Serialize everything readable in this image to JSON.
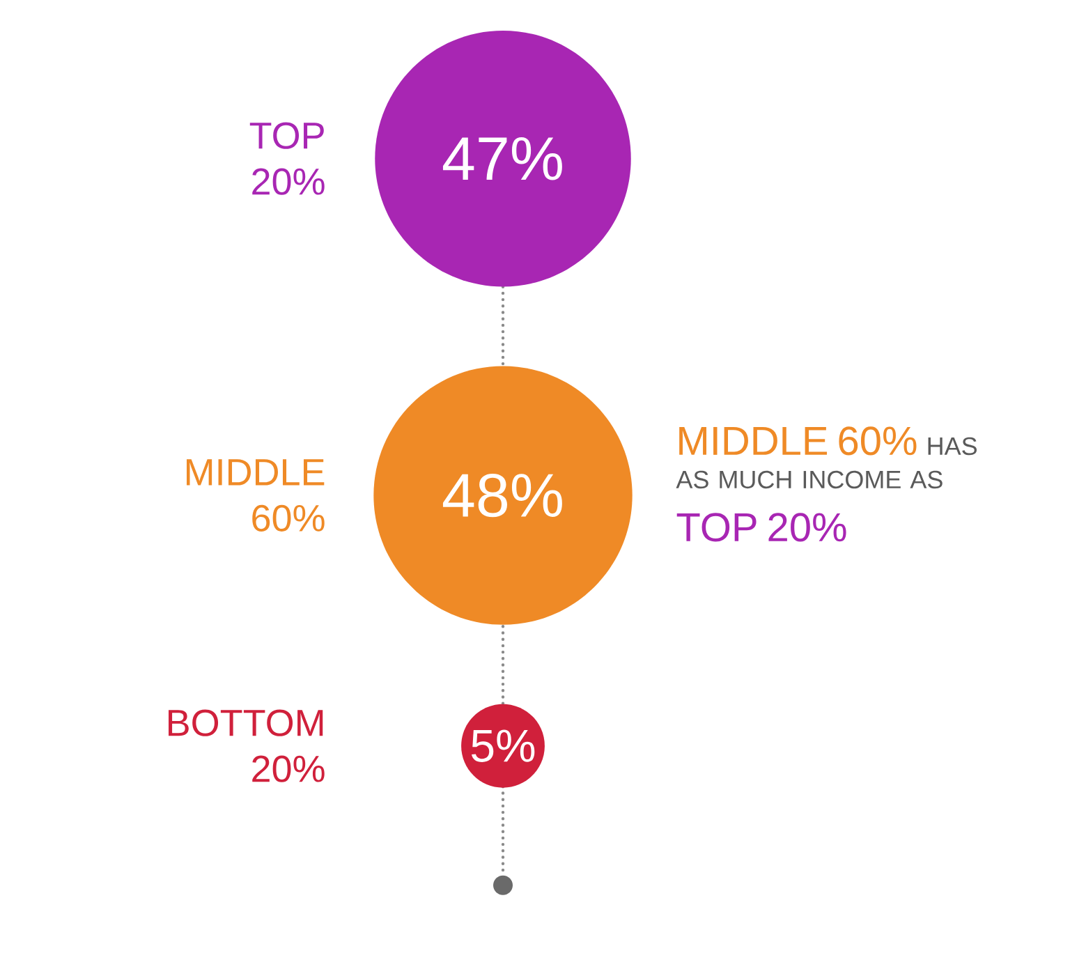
{
  "chart_data": {
    "type": "other",
    "categories": [
      "TOP 20%",
      "MIDDLE 60%",
      "BOTTOM 20%"
    ],
    "values": [
      47,
      48,
      5
    ],
    "value_labels": [
      "47%",
      "48%",
      "5%"
    ],
    "colors": [
      "#a826b3",
      "#ef8a26",
      "#d0203b"
    ],
    "annotations": [
      "MIDDLE 60%",
      "HAS AS MUCH INCOME AS",
      "TOP 20%"
    ]
  }
}
